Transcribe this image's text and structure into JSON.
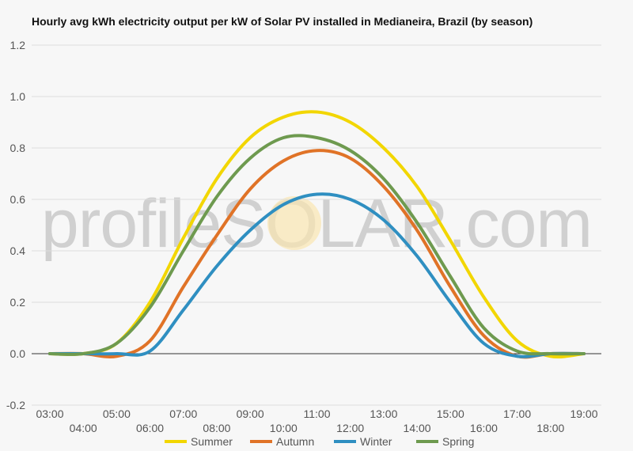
{
  "chart_data": {
    "type": "line",
    "title": "Hourly avg kWh electricity output per kW of Solar PV installed in Medianeira, Brazil (by season)",
    "xlabel": "",
    "ylabel": "",
    "x": [
      "03:00",
      "04:00",
      "05:00",
      "06:00",
      "07:00",
      "08:00",
      "09:00",
      "10:00",
      "11:00",
      "12:00",
      "13:00",
      "14:00",
      "15:00",
      "16:00",
      "17:00",
      "18:00",
      "19:00"
    ],
    "ylim": [
      -0.2,
      1.2
    ],
    "yticks": [
      "-0.2",
      "0.0",
      "0.2",
      "0.4",
      "0.6",
      "0.8",
      "1.0",
      "1.2"
    ],
    "grid": true,
    "legend_position": "bottom",
    "watermark": "profileSOLAR.com",
    "series": [
      {
        "name": "Summer",
        "color": "#f2d600",
        "values": [
          0.0,
          0.0,
          0.04,
          0.2,
          0.45,
          0.68,
          0.84,
          0.92,
          0.94,
          0.9,
          0.8,
          0.65,
          0.44,
          0.22,
          0.05,
          -0.01,
          0.0
        ]
      },
      {
        "name": "Autumn",
        "color": "#e07327",
        "values": [
          0.0,
          0.0,
          -0.01,
          0.05,
          0.26,
          0.46,
          0.64,
          0.75,
          0.79,
          0.76,
          0.65,
          0.48,
          0.26,
          0.07,
          -0.01,
          0.0,
          0.0
        ]
      },
      {
        "name": "Winter",
        "color": "#2f8fc1",
        "values": [
          0.0,
          0.0,
          0.0,
          0.01,
          0.17,
          0.34,
          0.48,
          0.58,
          0.62,
          0.6,
          0.52,
          0.38,
          0.2,
          0.04,
          -0.01,
          0.0,
          0.0
        ]
      },
      {
        "name": "Spring",
        "color": "#6e9a4f",
        "values": [
          0.0,
          0.0,
          0.04,
          0.18,
          0.4,
          0.61,
          0.76,
          0.84,
          0.84,
          0.79,
          0.68,
          0.51,
          0.3,
          0.1,
          0.01,
          0.0,
          0.0
        ]
      }
    ]
  }
}
